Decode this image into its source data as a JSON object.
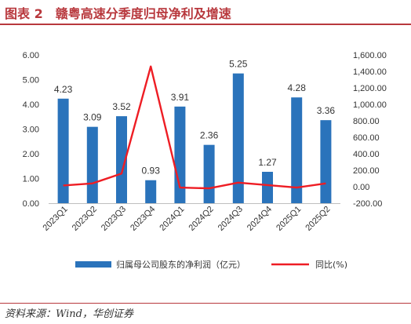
{
  "header": {
    "title": "图表 2　赣粤高速分季度归母净利及增速"
  },
  "footer": {
    "source": "资料来源：Wind，华创证券"
  },
  "colors": {
    "bar": "#2a73bb",
    "line": "#ee1d24",
    "title": "#b8383d"
  },
  "chart_data": {
    "type": "bar",
    "title": "",
    "categories": [
      "2023Q1",
      "2023Q2",
      "2023Q3",
      "2023Q4",
      "2024Q1",
      "2024Q2",
      "2024Q3",
      "2024Q4",
      "2025Q1",
      "2025Q2"
    ],
    "series": [
      {
        "name": "归属母公司股东的净利润（亿元）",
        "type": "bar",
        "axis": "left",
        "values": [
          4.23,
          3.09,
          3.52,
          0.93,
          3.91,
          2.36,
          5.25,
          1.27,
          4.28,
          3.36
        ]
      },
      {
        "name": "同比(%)",
        "type": "line",
        "axis": "right",
        "values": [
          15,
          40,
          160,
          1460,
          -10,
          -20,
          50,
          20,
          -10,
          40
        ]
      }
    ],
    "y_left": {
      "min": 0,
      "max": 6,
      "ticks": [
        "0.00",
        "1.00",
        "2.00",
        "3.00",
        "4.00",
        "5.00",
        "6.00"
      ]
    },
    "y_right": {
      "min": -200,
      "max": 1600,
      "ticks": [
        "-200.00",
        "0.00",
        "200.00",
        "400.00",
        "600.00",
        "800.00",
        "1,000.00",
        "1,200.00",
        "1,400.00",
        "1,600.00"
      ]
    },
    "legend_position": "bottom",
    "grid": false
  }
}
